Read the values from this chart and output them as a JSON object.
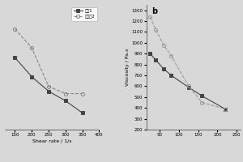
{
  "left_panel": {
    "series1": {
      "label": "实例1",
      "x": [
        150,
        200,
        250,
        300,
        350
      ],
      "y": [
        0.58,
        0.5,
        0.44,
        0.4,
        0.35
      ],
      "marker": "s",
      "color": "#444444",
      "markersize": 3,
      "linestyle": "-",
      "markerfill": "#444444"
    },
    "series2": {
      "label": "对比例2",
      "x": [
        150,
        200,
        250,
        300,
        350
      ],
      "y": [
        0.7,
        0.62,
        0.46,
        0.43,
        0.43
      ],
      "marker": "o",
      "color": "#888888",
      "markersize": 3,
      "linestyle": "--",
      "markerfill": "none"
    },
    "xlabel": "Shear rate / 1/s",
    "xlim": [
      120,
      400
    ],
    "xticks": [
      150,
      200,
      250,
      300,
      350,
      400
    ],
    "ylim": [
      0.28,
      0.8
    ]
  },
  "right_panel": {
    "sublabel": "b",
    "series1": {
      "label": "实例1",
      "x": [
        25,
        40,
        60,
        80,
        125,
        160,
        220
      ],
      "y": [
        900,
        840,
        760,
        700,
        590,
        510,
        390
      ],
      "marker": "s",
      "color": "#444444",
      "markersize": 3,
      "linestyle": "-",
      "markerfill": "#444444"
    },
    "series2": {
      "label": "对比例2",
      "x": [
        25,
        40,
        60,
        80,
        125,
        160,
        220
      ],
      "y": [
        1240,
        1120,
        980,
        880,
        600,
        450,
        390
      ],
      "marker": "o",
      "color": "#999999",
      "markersize": 3,
      "linestyle": "--",
      "markerfill": "none"
    },
    "ylabel": "Viscosity / Pa.s",
    "xlim": [
      15,
      260
    ],
    "xticks": [
      50,
      100,
      150,
      200,
      250
    ],
    "ylim": [
      200,
      1350
    ],
    "yticks": [
      200,
      300,
      400,
      500,
      600,
      700,
      800,
      900,
      1000,
      1100,
      1200,
      1300
    ]
  },
  "legend_labels": [
    "实例1",
    "对比例2"
  ],
  "bg_color": "#d8d8d8"
}
